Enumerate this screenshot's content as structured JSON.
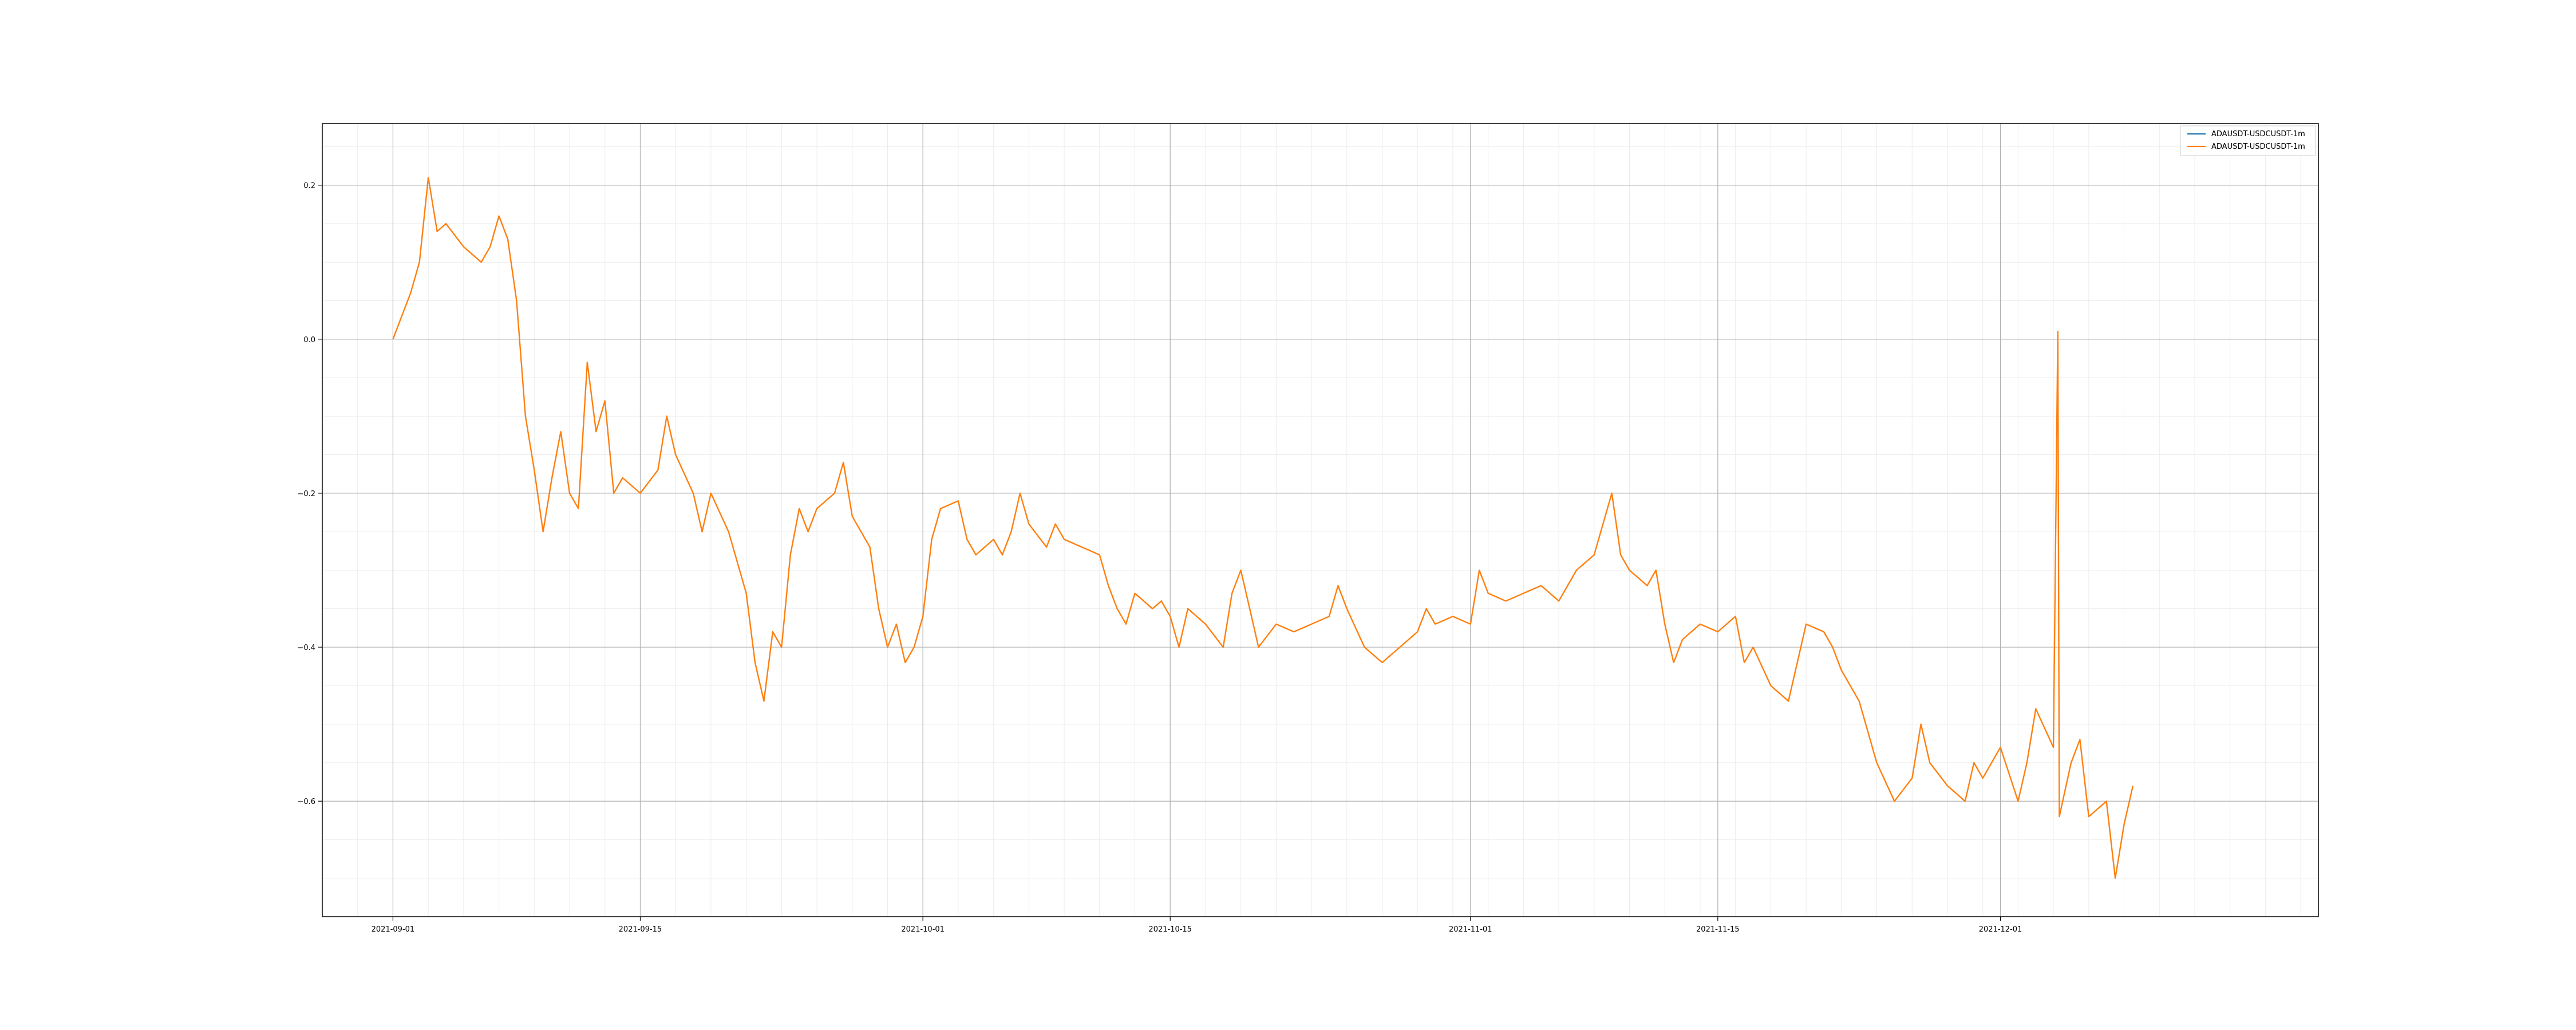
{
  "chart_data": {
    "type": "line",
    "title": "",
    "xlabel": "",
    "ylabel": "",
    "x_range": [
      "2021-08-28",
      "2021-12-19"
    ],
    "ylim": [
      -0.75,
      0.28
    ],
    "x_ticks": [
      "2021-09-01",
      "2021-09-15",
      "2021-10-01",
      "2021-10-15",
      "2021-11-01",
      "2021-11-15",
      "2021-12-01"
    ],
    "y_ticks": [
      -0.6,
      -0.4,
      -0.2,
      0.0,
      0.2
    ],
    "y_tick_labels": [
      "−0.6",
      "−0.4",
      "−0.2",
      "0.0",
      "0.2"
    ],
    "grid": true,
    "minor_grid": true,
    "legend_position": "upper right",
    "series": [
      {
        "name": "ADAUSDT-USDCUSDT-1m",
        "color": "#1f77b4",
        "points": []
      },
      {
        "name": "ADAUSDT-USDCUSDT-1m",
        "color": "#ff7f0e",
        "points": [
          [
            "2021-09-01",
            0.0
          ],
          [
            "2021-09-02",
            0.06
          ],
          [
            "2021-09-02 12:00",
            0.1
          ],
          [
            "2021-09-03",
            0.21
          ],
          [
            "2021-09-03 12:00",
            0.14
          ],
          [
            "2021-09-04",
            0.15
          ],
          [
            "2021-09-05",
            0.12
          ],
          [
            "2021-09-06",
            0.1
          ],
          [
            "2021-09-06 12:00",
            0.12
          ],
          [
            "2021-09-07",
            0.16
          ],
          [
            "2021-09-07 12:00",
            0.13
          ],
          [
            "2021-09-08",
            0.05
          ],
          [
            "2021-09-08 12:00",
            -0.1
          ],
          [
            "2021-09-09",
            -0.17
          ],
          [
            "2021-09-09 12:00",
            -0.25
          ],
          [
            "2021-09-10",
            -0.18
          ],
          [
            "2021-09-10 12:00",
            -0.12
          ],
          [
            "2021-09-11",
            -0.2
          ],
          [
            "2021-09-11 12:00",
            -0.22
          ],
          [
            "2021-09-12",
            -0.03
          ],
          [
            "2021-09-12 12:00",
            -0.12
          ],
          [
            "2021-09-13",
            -0.08
          ],
          [
            "2021-09-13 12:00",
            -0.2
          ],
          [
            "2021-09-14",
            -0.18
          ],
          [
            "2021-09-15",
            -0.2
          ],
          [
            "2021-09-16",
            -0.17
          ],
          [
            "2021-09-16 12:00",
            -0.1
          ],
          [
            "2021-09-17",
            -0.15
          ],
          [
            "2021-09-18",
            -0.2
          ],
          [
            "2021-09-18 12:00",
            -0.25
          ],
          [
            "2021-09-19",
            -0.2
          ],
          [
            "2021-09-20",
            -0.25
          ],
          [
            "2021-09-21",
            -0.33
          ],
          [
            "2021-09-21 12:00",
            -0.42
          ],
          [
            "2021-09-22",
            -0.47
          ],
          [
            "2021-09-22 12:00",
            -0.38
          ],
          [
            "2021-09-23",
            -0.4
          ],
          [
            "2021-09-23 12:00",
            -0.28
          ],
          [
            "2021-09-24",
            -0.22
          ],
          [
            "2021-09-24 12:00",
            -0.25
          ],
          [
            "2021-09-25",
            -0.22
          ],
          [
            "2021-09-26",
            -0.2
          ],
          [
            "2021-09-26 12:00",
            -0.16
          ],
          [
            "2021-09-27",
            -0.23
          ],
          [
            "2021-09-28",
            -0.27
          ],
          [
            "2021-09-28 12:00",
            -0.35
          ],
          [
            "2021-09-29",
            -0.4
          ],
          [
            "2021-09-29 12:00",
            -0.37
          ],
          [
            "2021-09-30",
            -0.42
          ],
          [
            "2021-09-30 12:00",
            -0.4
          ],
          [
            "2021-10-01",
            -0.36
          ],
          [
            "2021-10-01 12:00",
            -0.26
          ],
          [
            "2021-10-02",
            -0.22
          ],
          [
            "2021-10-03",
            -0.21
          ],
          [
            "2021-10-03 12:00",
            -0.26
          ],
          [
            "2021-10-04",
            -0.28
          ],
          [
            "2021-10-05",
            -0.26
          ],
          [
            "2021-10-05 12:00",
            -0.28
          ],
          [
            "2021-10-06",
            -0.25
          ],
          [
            "2021-10-06 12:00",
            -0.2
          ],
          [
            "2021-10-07",
            -0.24
          ],
          [
            "2021-10-08",
            -0.27
          ],
          [
            "2021-10-08 12:00",
            -0.24
          ],
          [
            "2021-10-09",
            -0.26
          ],
          [
            "2021-10-10",
            -0.27
          ],
          [
            "2021-10-11",
            -0.28
          ],
          [
            "2021-10-11 12:00",
            -0.32
          ],
          [
            "2021-10-12",
            -0.35
          ],
          [
            "2021-10-12 12:00",
            -0.37
          ],
          [
            "2021-10-13",
            -0.33
          ],
          [
            "2021-10-14",
            -0.35
          ],
          [
            "2021-10-14 12:00",
            -0.34
          ],
          [
            "2021-10-15",
            -0.36
          ],
          [
            "2021-10-15 12:00",
            -0.4
          ],
          [
            "2021-10-16",
            -0.35
          ],
          [
            "2021-10-17",
            -0.37
          ],
          [
            "2021-10-18",
            -0.4
          ],
          [
            "2021-10-18 12:00",
            -0.33
          ],
          [
            "2021-10-19",
            -0.3
          ],
          [
            "2021-10-19 12:00",
            -0.35
          ],
          [
            "2021-10-20",
            -0.4
          ],
          [
            "2021-10-21",
            -0.37
          ],
          [
            "2021-10-22",
            -0.38
          ],
          [
            "2021-10-23",
            -0.37
          ],
          [
            "2021-10-24",
            -0.36
          ],
          [
            "2021-10-24 12:00",
            -0.32
          ],
          [
            "2021-10-25",
            -0.35
          ],
          [
            "2021-10-26",
            -0.4
          ],
          [
            "2021-10-27",
            -0.42
          ],
          [
            "2021-10-28",
            -0.4
          ],
          [
            "2021-10-29",
            -0.38
          ],
          [
            "2021-10-29 12:00",
            -0.35
          ],
          [
            "2021-10-30",
            -0.37
          ],
          [
            "2021-10-31",
            -0.36
          ],
          [
            "2021-11-01",
            -0.37
          ],
          [
            "2021-11-01 12:00",
            -0.3
          ],
          [
            "2021-11-02",
            -0.33
          ],
          [
            "2021-11-03",
            -0.34
          ],
          [
            "2021-11-04",
            -0.33
          ],
          [
            "2021-11-05",
            -0.32
          ],
          [
            "2021-11-06",
            -0.34
          ],
          [
            "2021-11-07",
            -0.3
          ],
          [
            "2021-11-08",
            -0.28
          ],
          [
            "2021-11-09",
            -0.2
          ],
          [
            "2021-11-09 12:00",
            -0.28
          ],
          [
            "2021-11-10",
            -0.3
          ],
          [
            "2021-11-11",
            -0.32
          ],
          [
            "2021-11-11 12:00",
            -0.3
          ],
          [
            "2021-11-12",
            -0.37
          ],
          [
            "2021-11-12 12:00",
            -0.42
          ],
          [
            "2021-11-13",
            -0.39
          ],
          [
            "2021-11-14",
            -0.37
          ],
          [
            "2021-11-15",
            -0.38
          ],
          [
            "2021-11-16",
            -0.36
          ],
          [
            "2021-11-16 12:00",
            -0.42
          ],
          [
            "2021-11-17",
            -0.4
          ],
          [
            "2021-11-18",
            -0.45
          ],
          [
            "2021-11-19",
            -0.47
          ],
          [
            "2021-11-19 12:00",
            -0.42
          ],
          [
            "2021-11-20",
            -0.37
          ],
          [
            "2021-11-21",
            -0.38
          ],
          [
            "2021-11-21 12:00",
            -0.4
          ],
          [
            "2021-11-22",
            -0.43
          ],
          [
            "2021-11-23",
            -0.47
          ],
          [
            "2021-11-24",
            -0.55
          ],
          [
            "2021-11-25",
            -0.6
          ],
          [
            "2021-11-26",
            -0.57
          ],
          [
            "2021-11-26 12:00",
            -0.5
          ],
          [
            "2021-11-27",
            -0.55
          ],
          [
            "2021-11-28",
            -0.58
          ],
          [
            "2021-11-29",
            -0.6
          ],
          [
            "2021-11-29 12:00",
            -0.55
          ],
          [
            "2021-11-30",
            -0.57
          ],
          [
            "2021-12-01",
            -0.53
          ],
          [
            "2021-12-02",
            -0.6
          ],
          [
            "2021-12-02 12:00",
            -0.55
          ],
          [
            "2021-12-03",
            -0.48
          ],
          [
            "2021-12-04",
            -0.53
          ],
          [
            "2021-12-04 06:00",
            0.01
          ],
          [
            "2021-12-04 08:00",
            -0.62
          ],
          [
            "2021-12-05",
            -0.55
          ],
          [
            "2021-12-05 12:00",
            -0.52
          ],
          [
            "2021-12-06",
            -0.62
          ],
          [
            "2021-12-07",
            -0.6
          ],
          [
            "2021-12-07 12:00",
            -0.7
          ],
          [
            "2021-12-08",
            -0.63
          ],
          [
            "2021-12-08 12:00",
            -0.58
          ]
        ]
      }
    ]
  }
}
